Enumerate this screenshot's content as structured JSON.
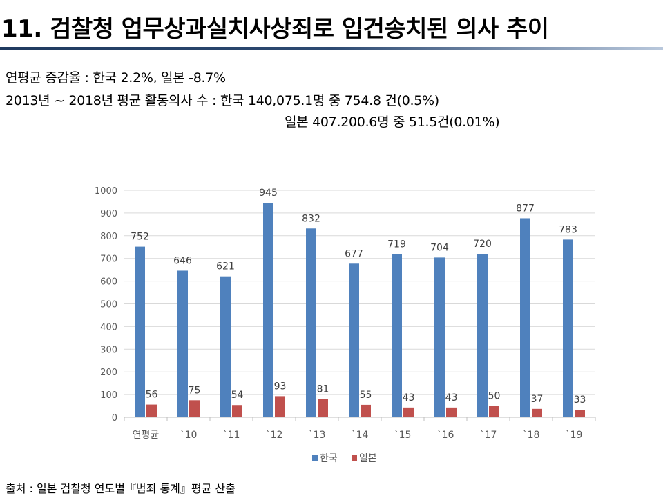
{
  "header": {
    "title": "11. 검찰청 업무상과실치사상죄로 입건송치된 의사 추이"
  },
  "summary": {
    "line1": "연평균 증감율 : 한국 2.2%, 일본 -8.7%",
    "line2": "2013년 ~ 2018년 평균 활동의사 수 : 한국 140,075.1명 중 754.8 건(0.5%)",
    "line3": "일본 407.200.6명 중 51.5건(0.01%)"
  },
  "source": "출처 : 일본 검찰청 연도별『범죄 통계』평균 산출",
  "chart_data": {
    "type": "bar",
    "categories": [
      "연평균",
      "`10",
      "`11",
      "`12",
      "`13",
      "`14",
      "`15",
      "`16",
      "`17",
      "`18",
      "`19"
    ],
    "series": [
      {
        "name": "한국",
        "color": "#4f81bd",
        "values": [
          752,
          646,
          621,
          945,
          832,
          677,
          719,
          704,
          720,
          877,
          783
        ]
      },
      {
        "name": "일본",
        "color": "#c0504d",
        "values": [
          56,
          75,
          54,
          93,
          81,
          55,
          43,
          43,
          50,
          37,
          33
        ]
      }
    ],
    "ylim": [
      0,
      1000
    ],
    "yticks": [
      0,
      100,
      200,
      300,
      400,
      500,
      600,
      700,
      800,
      900,
      1000
    ],
    "grid": true,
    "legend": "bottom",
    "data_labels": true
  }
}
